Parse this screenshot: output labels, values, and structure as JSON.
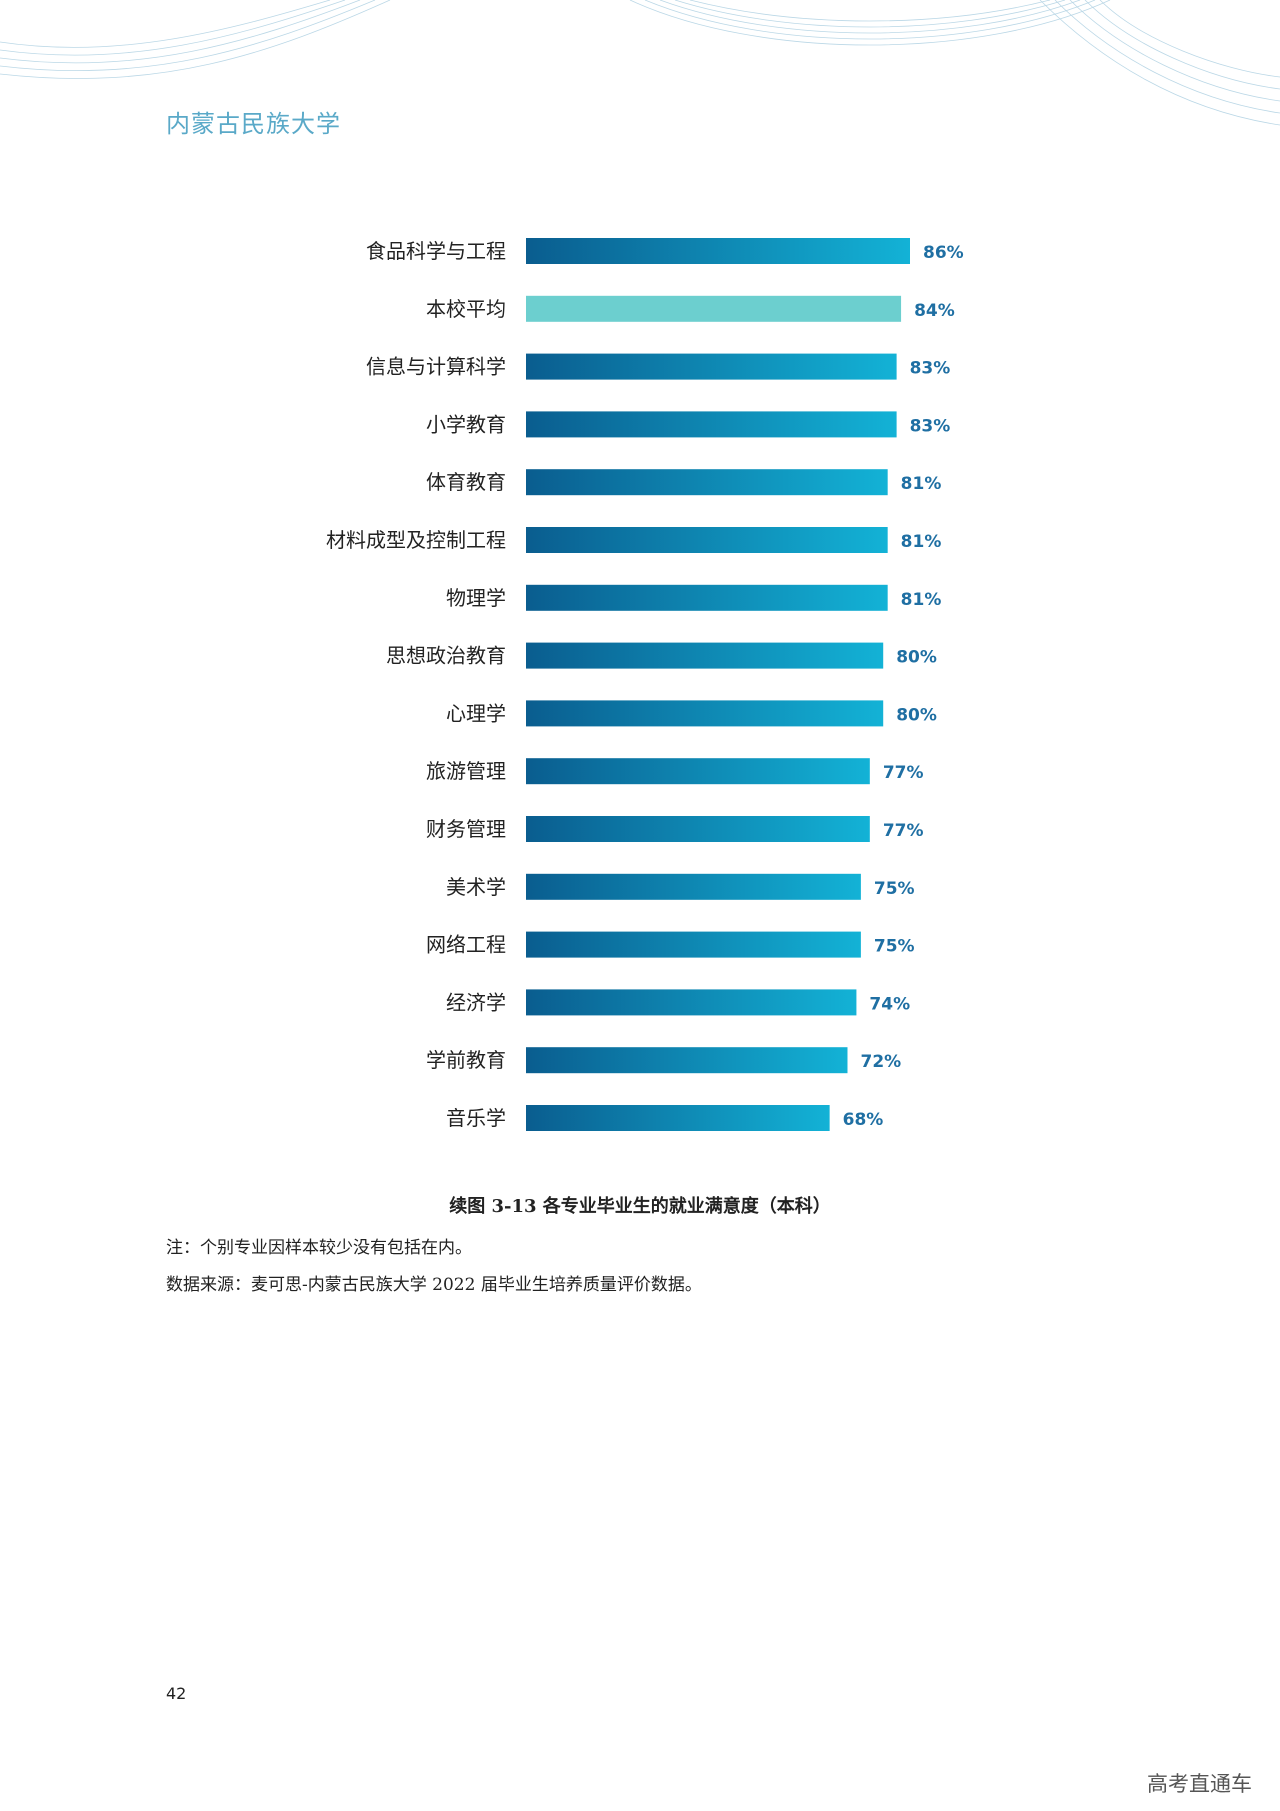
{
  "header": {
    "university": "内蒙古民族大学"
  },
  "chart_data": {
    "type": "bar",
    "orientation": "horizontal",
    "categories": [
      "食品科学与工程",
      "本校平均",
      "信息与计算科学",
      "小学教育",
      "体育教育",
      "材料成型及控制工程",
      "物理学",
      "思想政治教育",
      "心理学",
      "旅游管理",
      "财务管理",
      "美术学",
      "网络工程",
      "经济学",
      "学前教育",
      "音乐学"
    ],
    "values": [
      86,
      84,
      83,
      83,
      81,
      81,
      81,
      80,
      80,
      77,
      77,
      75,
      75,
      74,
      72,
      68
    ],
    "value_labels": [
      "86%",
      "84%",
      "83%",
      "83%",
      "81%",
      "81%",
      "81%",
      "80%",
      "80%",
      "77%",
      "77%",
      "75%",
      "75%",
      "74%",
      "72%",
      "68%"
    ],
    "unit": "%",
    "highlight_category": "本校平均",
    "colors": {
      "bar_start": "#0a5d8f",
      "bar_end": "#13b2d6",
      "highlight": "#6ccfcf",
      "value_text": "#1f6fa3"
    },
    "title": "续图 3-13 各专业毕业生的就业满意度（本科）",
    "xlabel": "",
    "ylabel": "",
    "xlim": [
      0,
      86
    ],
    "grid": false,
    "legend": "none"
  },
  "notes": {
    "note": "注：个别专业因样本较少没有包括在内。",
    "source": "数据来源：麦可思-内蒙古民族大学 2022 届毕业生培养质量评价数据。"
  },
  "footer": {
    "page_number": "42",
    "watermark": "高考直通车"
  }
}
